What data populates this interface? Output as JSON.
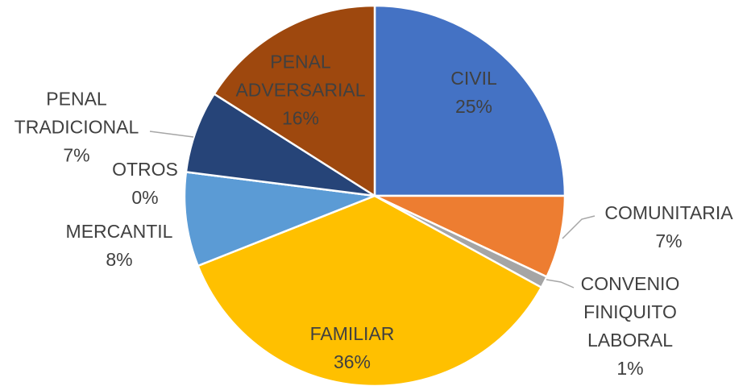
{
  "chart_data": {
    "type": "pie",
    "categories": [
      "CIVIL",
      "COMUNITARIA",
      "CONVENIO FINIQUITO LABORAL",
      "FAMILIAR",
      "MERCANTIL",
      "OTROS",
      "PENAL TRADICIONAL",
      "PENAL ADVERSARIAL"
    ],
    "values": [
      25,
      7,
      1,
      36,
      8,
      0,
      7,
      16
    ],
    "value_labels": [
      "25%",
      "7%",
      "1%",
      "36%",
      "8%",
      "0%",
      "7%",
      "16%"
    ],
    "colors": [
      "#4472c4",
      "#ed7d31",
      "#a5a5a5",
      "#ffc000",
      "#5b9bd5",
      "#70ad47",
      "#264478",
      "#9e480e"
    ]
  }
}
